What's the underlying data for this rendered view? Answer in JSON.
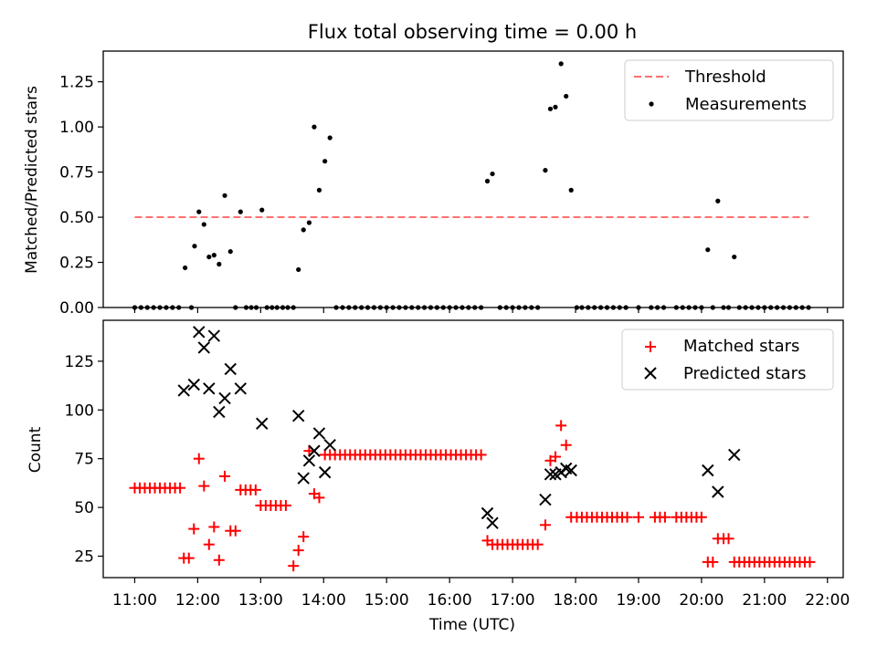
{
  "chart_data": [
    {
      "type": "scatter",
      "title": "Flux total observing time = 0.00 h",
      "xlabel": "",
      "ylabel": "Matched/Predicted stars",
      "xlim": [
        10.5,
        22.25
      ],
      "ylim": [
        0,
        1.42
      ],
      "yticks": [
        0,
        0.25,
        0.5,
        0.75,
        1.0,
        1.25
      ],
      "ytick_labels": [
        "0.00",
        "0.25",
        "0.50",
        "0.75",
        "1.00",
        "1.25"
      ],
      "legend_position": "top-right",
      "series": [
        {
          "name": "Threshold",
          "style": "dashed-line",
          "color": "#ff7070",
          "x": [
            11.0,
            21.7
          ],
          "y": [
            0.5,
            0.5
          ]
        },
        {
          "name": "Measurements",
          "style": "dot",
          "color": "#000000",
          "x": [
            11.0,
            11.1,
            11.2,
            11.3,
            11.4,
            11.5,
            11.6,
            11.7,
            11.8,
            11.9,
            11.95,
            12.02,
            12.1,
            12.18,
            12.26,
            12.34,
            12.43,
            12.52,
            12.6,
            12.68,
            12.77,
            12.85,
            12.93,
            13.02,
            13.1,
            13.18,
            13.26,
            13.35,
            13.43,
            13.52,
            13.6,
            13.68,
            13.77,
            13.85,
            13.93,
            14.02,
            14.1,
            14.2,
            14.3,
            14.4,
            14.5,
            14.6,
            14.7,
            14.8,
            14.9,
            15.0,
            15.1,
            15.2,
            15.3,
            15.4,
            15.5,
            15.6,
            15.7,
            15.8,
            15.9,
            16.0,
            16.1,
            16.2,
            16.3,
            16.4,
            16.5,
            16.6,
            16.68,
            16.8,
            16.9,
            17.0,
            17.1,
            17.2,
            17.3,
            17.4,
            17.52,
            17.6,
            17.68,
            17.77,
            17.85,
            17.93,
            18.02,
            18.1,
            18.2,
            18.3,
            18.4,
            18.5,
            18.6,
            18.7,
            18.8,
            19.0,
            19.2,
            19.3,
            19.4,
            19.6,
            19.7,
            19.8,
            19.9,
            20.0,
            20.1,
            20.18,
            20.26,
            20.35,
            20.43,
            20.52,
            20.6,
            20.7,
            20.8,
            20.9,
            21.0,
            21.1,
            21.2,
            21.3,
            21.4,
            21.5,
            21.6,
            21.7
          ],
          "y": [
            0,
            0,
            0,
            0,
            0,
            0,
            0,
            0,
            0.22,
            0,
            0.34,
            0.53,
            0.46,
            0.28,
            0.29,
            0.24,
            0.62,
            0.31,
            0,
            0.53,
            0,
            0,
            0,
            0.54,
            0,
            0,
            0,
            0,
            0,
            0,
            0.21,
            0.43,
            0.47,
            1.0,
            0.65,
            0.81,
            0.94,
            0,
            0,
            0,
            0,
            0,
            0,
            0,
            0,
            0,
            0,
            0,
            0,
            0,
            0,
            0,
            0,
            0,
            0,
            0,
            0,
            0,
            0,
            0,
            0,
            0.7,
            0.74,
            0,
            0,
            0,
            0,
            0,
            0,
            0,
            0.76,
            1.1,
            1.11,
            1.35,
            1.17,
            0.65,
            0,
            0,
            0,
            0,
            0,
            0,
            0,
            0,
            0,
            0,
            0,
            0,
            0,
            0,
            0,
            0,
            0,
            0,
            0.32,
            0,
            0.59,
            0,
            0,
            0.28,
            0,
            0,
            0,
            0,
            0,
            0,
            0,
            0,
            0,
            0,
            0,
            0
          ]
        }
      ]
    },
    {
      "type": "scatter",
      "title": "",
      "xlabel": "Time (UTC)",
      "ylabel": "Count",
      "xlim": [
        10.5,
        22.25
      ],
      "ylim": [
        14,
        146
      ],
      "yticks": [
        25,
        50,
        75,
        100,
        125
      ],
      "ytick_labels": [
        "25",
        "50",
        "75",
        "100",
        "125"
      ],
      "xticks": [
        11,
        12,
        13,
        14,
        15,
        16,
        17,
        18,
        19,
        20,
        21,
        22
      ],
      "xtick_labels": [
        "11:00",
        "12:00",
        "13:00",
        "14:00",
        "15:00",
        "16:00",
        "17:00",
        "18:00",
        "19:00",
        "20:00",
        "21:00",
        "22:00"
      ],
      "legend_position": "top-right",
      "series": [
        {
          "name": "Matched stars",
          "style": "plus",
          "color": "#ff0000",
          "x": [
            11.0,
            11.08,
            11.16,
            11.24,
            11.32,
            11.4,
            11.48,
            11.56,
            11.64,
            11.72,
            11.78,
            11.86,
            11.94,
            12.02,
            12.1,
            12.18,
            12.26,
            12.34,
            12.43,
            12.52,
            12.6,
            12.68,
            12.76,
            12.84,
            12.92,
            13.0,
            13.08,
            13.16,
            13.24,
            13.32,
            13.4,
            13.52,
            13.6,
            13.68,
            13.77,
            13.85,
            13.93,
            14.02,
            14.1,
            14.18,
            14.26,
            14.34,
            14.42,
            14.5,
            14.58,
            14.66,
            14.74,
            14.82,
            14.9,
            14.98,
            15.06,
            15.14,
            15.22,
            15.3,
            15.38,
            15.46,
            15.54,
            15.62,
            15.7,
            15.78,
            15.86,
            15.94,
            16.02,
            16.1,
            16.18,
            16.26,
            16.34,
            16.42,
            16.5,
            16.6,
            16.68,
            16.76,
            16.84,
            16.92,
            17.0,
            17.08,
            17.16,
            17.24,
            17.32,
            17.4,
            17.52,
            17.6,
            17.68,
            17.77,
            17.85,
            17.93,
            18.02,
            18.1,
            18.18,
            18.26,
            18.34,
            18.42,
            18.5,
            18.58,
            18.66,
            18.74,
            18.82,
            19.0,
            19.26,
            19.34,
            19.42,
            19.6,
            19.68,
            19.76,
            19.84,
            19.92,
            20.0,
            20.1,
            20.18,
            20.26,
            20.35,
            20.43,
            20.52,
            20.6,
            20.68,
            20.76,
            20.84,
            20.92,
            21.0,
            21.08,
            21.16,
            21.24,
            21.32,
            21.4,
            21.48,
            21.56,
            21.64,
            21.72
          ],
          "y": [
            60,
            60,
            60,
            60,
            60,
            60,
            60,
            60,
            60,
            60,
            24,
            24,
            39,
            75,
            61,
            31,
            40,
            23,
            66,
            38,
            38,
            59,
            59,
            59,
            59,
            51,
            51,
            51,
            51,
            51,
            51,
            20,
            28,
            35,
            79,
            57,
            55,
            77,
            77,
            77,
            77,
            77,
            77,
            77,
            77,
            77,
            77,
            77,
            77,
            77,
            77,
            77,
            77,
            77,
            77,
            77,
            77,
            77,
            77,
            77,
            77,
            77,
            77,
            77,
            77,
            77,
            77,
            77,
            77,
            33,
            31,
            31,
            31,
            31,
            31,
            31,
            31,
            31,
            31,
            31,
            41,
            74,
            76,
            92,
            82,
            45,
            45,
            45,
            45,
            45,
            45,
            45,
            45,
            45,
            45,
            45,
            45,
            45,
            45,
            45,
            45,
            45,
            45,
            45,
            45,
            45,
            45,
            22,
            22,
            34,
            34,
            34,
            22,
            22,
            22,
            22,
            22,
            22,
            22,
            22,
            22,
            22,
            22,
            22,
            22,
            22,
            22,
            22
          ]
        },
        {
          "name": "Predicted stars",
          "style": "cross",
          "color": "#000000",
          "x": [
            11.78,
            11.94,
            12.02,
            12.1,
            12.18,
            12.26,
            12.34,
            12.43,
            12.52,
            12.68,
            13.02,
            13.6,
            13.68,
            13.77,
            13.85,
            13.93,
            14.02,
            14.1,
            16.6,
            16.68,
            17.52,
            17.6,
            17.68,
            17.77,
            17.85,
            17.93,
            20.1,
            20.26,
            20.52
          ],
          "y": [
            110,
            113,
            140,
            132,
            111,
            138,
            99,
            106,
            121,
            111,
            93,
            97,
            65,
            74,
            79,
            88,
            68,
            82,
            47,
            42,
            54,
            67,
            67,
            68,
            70,
            69,
            69,
            58,
            77
          ]
        }
      ]
    }
  ]
}
